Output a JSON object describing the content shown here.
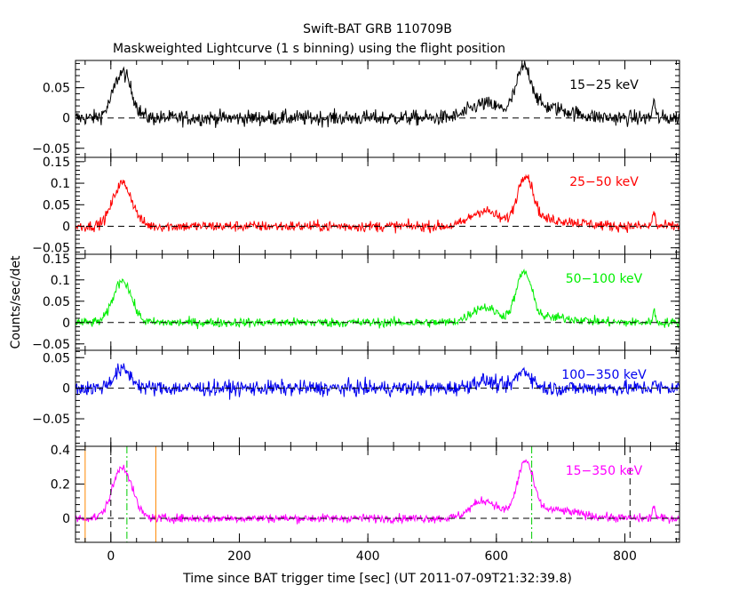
{
  "title": "Swift-BAT GRB 110709B",
  "subtitle": "Maskweighted Lightcurve (1 s binning) using the flight position",
  "xlabel": "Time since BAT trigger time [sec] (UT 2011-07-09T21:32:39.8)",
  "ylabel": "Counts/sec/det",
  "chart_data": {
    "type": "line",
    "xlim": [
      -55,
      885
    ],
    "x_ticks": [
      0,
      200,
      400,
      600,
      800
    ],
    "x_tick_labels": [
      "0",
      "200",
      "400",
      "600",
      "800"
    ],
    "panels": [
      {
        "name": "15-25 keV",
        "label": "15−25 keV",
        "color": "#000000",
        "ylim": [
          -0.065,
          0.095
        ],
        "y_ticks": [
          -0.05,
          0,
          0.05
        ],
        "y_tick_labels": [
          "−0.05",
          "0",
          "0.05"
        ],
        "noise": 0.009,
        "pulses": [
          {
            "center": 18,
            "amp": 0.075,
            "width": 14
          },
          {
            "center": 580,
            "amp": 0.022,
            "width": 22
          },
          {
            "center": 643,
            "amp": 0.07,
            "width": 12
          },
          {
            "center": 672,
            "amp": 0.018,
            "width": 40
          },
          {
            "center": 845,
            "amp": 0.03,
            "width": 2
          }
        ]
      },
      {
        "name": "25-50 keV",
        "label": "25−50 keV",
        "color": "#ff0000",
        "ylim": [
          -0.065,
          0.16
        ],
        "y_ticks": [
          -0.05,
          0,
          0.05,
          0.1,
          0.15
        ],
        "y_tick_labels": [
          "−0.05",
          "0",
          "0.05",
          "0.1",
          "0.15"
        ],
        "noise": 0.009,
        "pulses": [
          {
            "center": 18,
            "amp": 0.1,
            "width": 15
          },
          {
            "center": 580,
            "amp": 0.035,
            "width": 20
          },
          {
            "center": 645,
            "amp": 0.11,
            "width": 12
          },
          {
            "center": 680,
            "amp": 0.015,
            "width": 45
          },
          {
            "center": 845,
            "amp": 0.035,
            "width": 2
          }
        ]
      },
      {
        "name": "50-100 keV",
        "label": "50−100 keV",
        "color": "#00ee00",
        "ylim": [
          -0.065,
          0.16
        ],
        "y_ticks": [
          -0.05,
          0,
          0.05,
          0.1,
          0.15
        ],
        "y_tick_labels": [
          "−0.05",
          "0",
          "0.05",
          "0.1",
          "0.15"
        ],
        "noise": 0.008,
        "pulses": [
          {
            "center": 18,
            "amp": 0.1,
            "width": 14
          },
          {
            "center": 580,
            "amp": 0.035,
            "width": 20
          },
          {
            "center": 643,
            "amp": 0.11,
            "width": 12
          },
          {
            "center": 680,
            "amp": 0.012,
            "width": 45
          },
          {
            "center": 845,
            "amp": 0.03,
            "width": 2
          }
        ]
      },
      {
        "name": "100-350 keV",
        "label": "100−350 keV",
        "color": "#0000ee",
        "ylim": [
          -0.095,
          0.062
        ],
        "y_ticks": [
          -0.05,
          0,
          0.05
        ],
        "y_tick_labels": [
          "−0.05",
          "0",
          "0.05"
        ],
        "noise": 0.009,
        "pulses": [
          {
            "center": 18,
            "amp": 0.03,
            "width": 14
          },
          {
            "center": 580,
            "amp": 0.012,
            "width": 18
          },
          {
            "center": 643,
            "amp": 0.028,
            "width": 12
          },
          {
            "center": 845,
            "amp": 0.012,
            "width": 2
          }
        ]
      },
      {
        "name": "15-350 keV",
        "label": "15−350 keV",
        "color": "#ff00ff",
        "ylim": [
          -0.14,
          0.42
        ],
        "y_ticks": [
          0,
          0.2,
          0.4
        ],
        "y_tick_labels": [
          "0",
          "0.2",
          "0.4"
        ],
        "noise": 0.018,
        "pulses": [
          {
            "center": 18,
            "amp": 0.3,
            "width": 15
          },
          {
            "center": 580,
            "amp": 0.1,
            "width": 20
          },
          {
            "center": 645,
            "amp": 0.3,
            "width": 12
          },
          {
            "center": 680,
            "amp": 0.05,
            "width": 45
          },
          {
            "center": 845,
            "amp": 0.08,
            "width": 2
          }
        ],
        "markers": [
          {
            "x": -40,
            "color": "#ff8800",
            "style": "solid"
          },
          {
            "x": 70,
            "color": "#ff8800",
            "style": "solid"
          },
          {
            "x": 0,
            "color": "#000000",
            "style": "dashed"
          },
          {
            "x": 808,
            "color": "#000000",
            "style": "dashed"
          },
          {
            "x": 25,
            "color": "#00cc00",
            "style": "dashdot"
          },
          {
            "x": 655,
            "color": "#00cc00",
            "style": "dashdot"
          }
        ]
      }
    ]
  }
}
